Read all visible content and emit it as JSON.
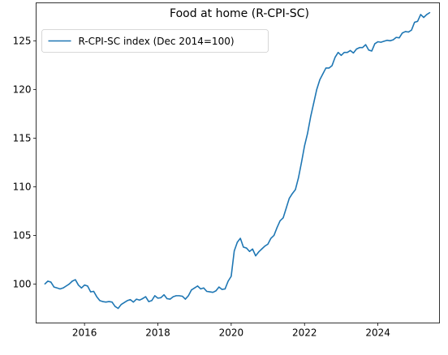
{
  "chart_data": {
    "type": "line",
    "title": "Food at home (R-CPI-SC)",
    "xlabel": "",
    "ylabel": "",
    "xlim": [
      2014.68,
      2025.68
    ],
    "ylim": [
      96.0,
      128.9
    ],
    "grid": false,
    "legend_position": "top-left",
    "x_ticks": [
      2016,
      2018,
      2020,
      2022,
      2024
    ],
    "x_tick_labels": [
      "2016",
      "2018",
      "2020",
      "2022",
      "2024"
    ],
    "y_ticks": [
      100,
      105,
      110,
      115,
      120,
      125
    ],
    "y_tick_labels": [
      "100",
      "105",
      "110",
      "115",
      "120",
      "125"
    ],
    "series": [
      {
        "name": "R-CPI-SC index (Dec 2014=100)",
        "color": "#1f77b4",
        "x": [
          2014.917,
          2015.0,
          2015.083,
          2015.167,
          2015.25,
          2015.333,
          2015.417,
          2015.5,
          2015.583,
          2015.667,
          2015.75,
          2015.833,
          2015.917,
          2016.0,
          2016.083,
          2016.167,
          2016.25,
          2016.333,
          2016.417,
          2016.5,
          2016.583,
          2016.667,
          2016.75,
          2016.833,
          2016.917,
          2017.0,
          2017.083,
          2017.167,
          2017.25,
          2017.333,
          2017.417,
          2017.5,
          2017.583,
          2017.667,
          2017.75,
          2017.833,
          2017.917,
          2018.0,
          2018.083,
          2018.167,
          2018.25,
          2018.333,
          2018.417,
          2018.5,
          2018.583,
          2018.667,
          2018.75,
          2018.833,
          2018.917,
          2019.0,
          2019.083,
          2019.167,
          2019.25,
          2019.333,
          2019.417,
          2019.5,
          2019.583,
          2019.667,
          2019.75,
          2019.833,
          2019.917,
          2020.0,
          2020.083,
          2020.167,
          2020.25,
          2020.333,
          2020.417,
          2020.5,
          2020.583,
          2020.667,
          2020.75,
          2020.833,
          2020.917,
          2021.0,
          2021.083,
          2021.167,
          2021.25,
          2021.333,
          2021.417,
          2021.5,
          2021.583,
          2021.667,
          2021.75,
          2021.833,
          2021.917,
          2022.0,
          2022.083,
          2022.167,
          2022.25,
          2022.333,
          2022.417,
          2022.5,
          2022.583,
          2022.667,
          2022.75,
          2022.833,
          2022.917,
          2023.0,
          2023.083,
          2023.167,
          2023.25,
          2023.333,
          2023.417,
          2023.5,
          2023.583,
          2023.667,
          2023.75,
          2023.833,
          2023.917,
          2024.0,
          2024.083,
          2024.167,
          2024.25,
          2024.333,
          2024.417,
          2024.5,
          2024.583,
          2024.667,
          2024.75,
          2024.833,
          2024.917,
          2025.0,
          2025.083,
          2025.167,
          2025.25,
          2025.333,
          2025.417
        ],
        "y": [
          100.0,
          100.3,
          100.2,
          99.7,
          99.6,
          99.5,
          99.6,
          99.8,
          100.0,
          100.3,
          100.45,
          99.9,
          99.6,
          99.9,
          99.8,
          99.2,
          99.25,
          98.7,
          98.3,
          98.2,
          98.15,
          98.2,
          98.15,
          97.7,
          97.5,
          97.9,
          98.1,
          98.3,
          98.4,
          98.15,
          98.45,
          98.35,
          98.5,
          98.7,
          98.2,
          98.3,
          98.8,
          98.55,
          98.6,
          98.9,
          98.5,
          98.45,
          98.7,
          98.8,
          98.8,
          98.75,
          98.45,
          98.8,
          99.4,
          99.6,
          99.8,
          99.5,
          99.6,
          99.25,
          99.2,
          99.15,
          99.3,
          99.7,
          99.45,
          99.5,
          100.3,
          100.8,
          103.4,
          104.3,
          104.7,
          103.8,
          103.7,
          103.35,
          103.6,
          102.9,
          103.3,
          103.6,
          103.9,
          104.1,
          104.7,
          105.0,
          105.8,
          106.5,
          106.8,
          107.8,
          108.8,
          109.3,
          109.7,
          110.9,
          112.5,
          114.2,
          115.5,
          117.2,
          118.6,
          120.0,
          121.0,
          121.6,
          122.2,
          122.2,
          122.45,
          123.3,
          123.8,
          123.5,
          123.8,
          123.8,
          124.0,
          123.75,
          124.15,
          124.3,
          124.3,
          124.6,
          124.05,
          123.95,
          124.7,
          124.9,
          124.85,
          124.95,
          125.05,
          125.0,
          125.1,
          125.35,
          125.3,
          125.8,
          125.95,
          125.9,
          126.1,
          126.9,
          127.0,
          127.7,
          127.4,
          127.7,
          127.9
        ]
      }
    ]
  }
}
